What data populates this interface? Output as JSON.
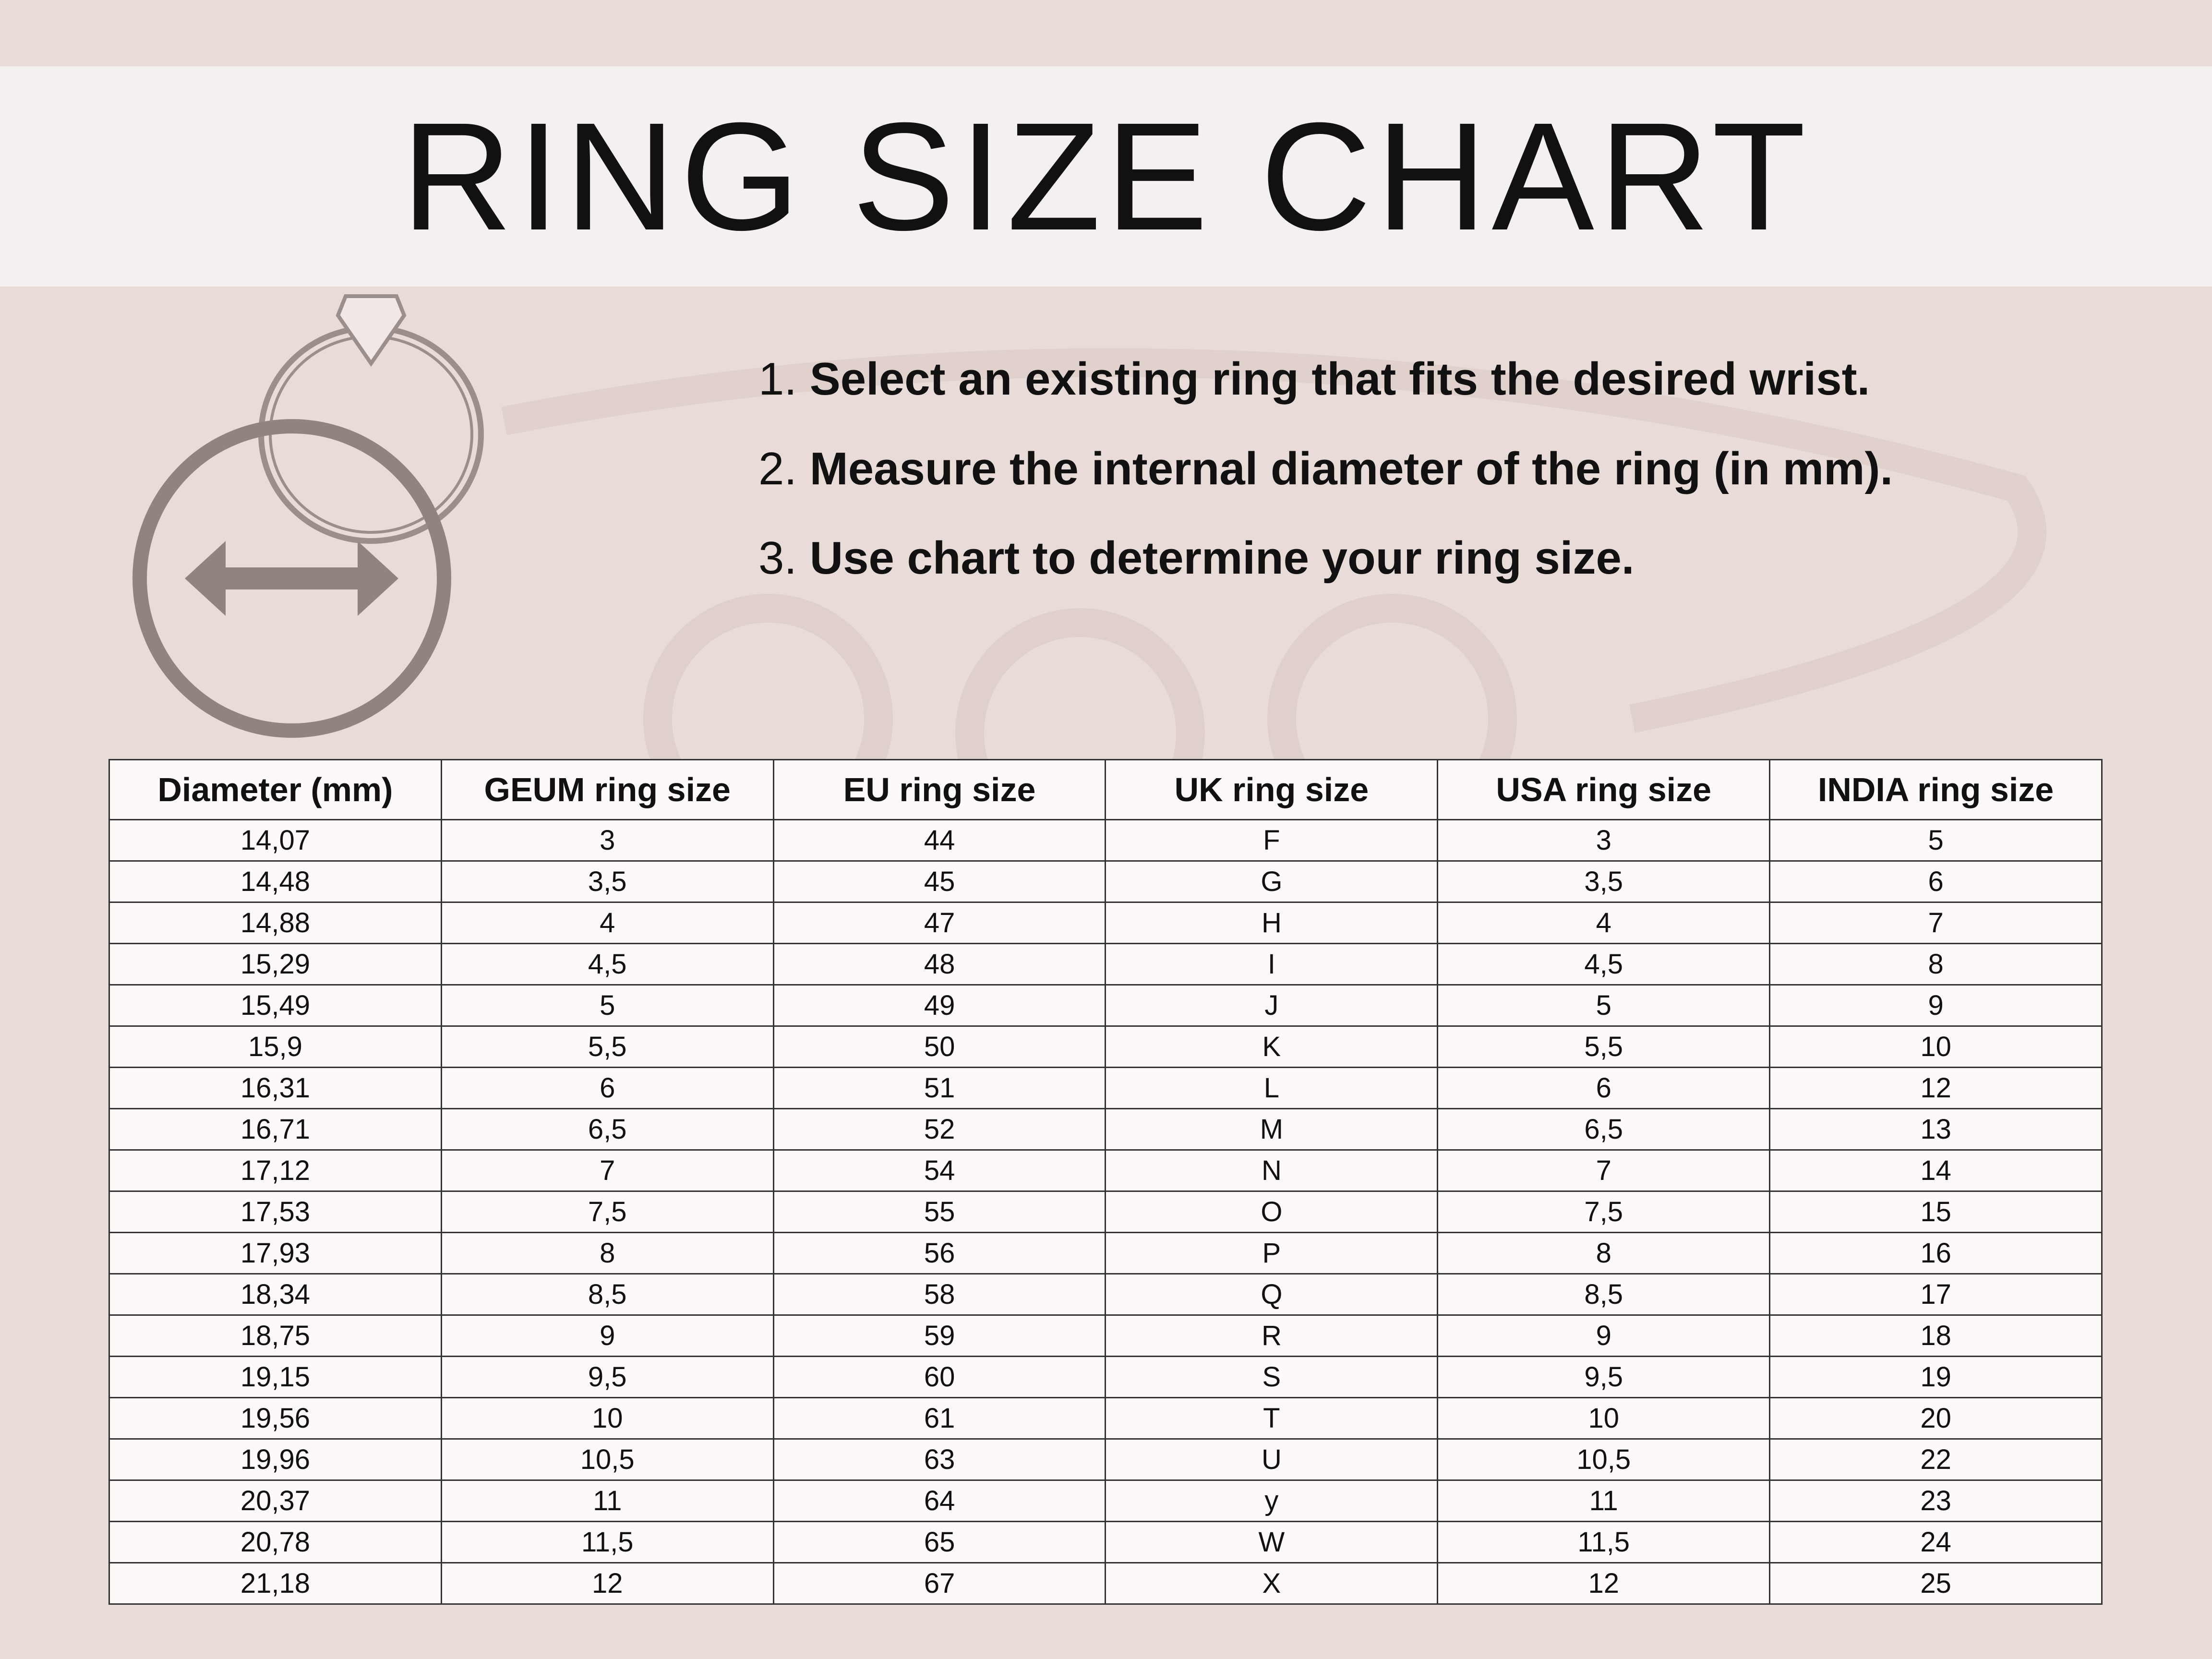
{
  "title": "RING SIZE CHART",
  "steps": [
    {
      "number": "1.",
      "text": "Select an existing ring that fits the desired wrist."
    },
    {
      "number": "2.",
      "text": "Measure the internal diameter of the ring (in mm)."
    },
    {
      "number": "3.",
      "text": "Use chart to determine your ring size."
    }
  ],
  "table": {
    "header": [
      "Diameter (mm)",
      "GEUM ring size",
      "EU ring size",
      "UK ring size",
      "USA ring size",
      "INDIA ring size"
    ],
    "rows": [
      [
        "14,07",
        "3",
        "44",
        "F",
        "3",
        "5"
      ],
      [
        "14,48",
        "3,5",
        "45",
        "G",
        "3,5",
        "6"
      ],
      [
        "14,88",
        "4",
        "47",
        "H",
        "4",
        "7"
      ],
      [
        "15,29",
        "4,5",
        "48",
        "I",
        "4,5",
        "8"
      ],
      [
        "15,49",
        "5",
        "49",
        "J",
        "5",
        "9"
      ],
      [
        "15,9",
        "5,5",
        "50",
        "K",
        "5,5",
        "10"
      ],
      [
        "16,31",
        "6",
        "51",
        "L",
        "6",
        "12"
      ],
      [
        "16,71",
        "6,5",
        "52",
        "M",
        "6,5",
        "13"
      ],
      [
        "17,12",
        "7",
        "54",
        "N",
        "7",
        "14"
      ],
      [
        "17,53",
        "7,5",
        "55",
        "O",
        "7,5",
        "15"
      ],
      [
        "17,93",
        "8",
        "56",
        "P",
        "8",
        "16"
      ],
      [
        "18,34",
        "8,5",
        "58",
        "Q",
        "8,5",
        "17"
      ],
      [
        "18,75",
        "9",
        "59",
        "R",
        "9",
        "18"
      ],
      [
        "19,15",
        "9,5",
        "60",
        "S",
        "9,5",
        "19"
      ],
      [
        "19,56",
        "10",
        "61",
        "T",
        "10",
        "20"
      ],
      [
        "19,96",
        "10,5",
        "63",
        "U",
        "10,5",
        "22"
      ],
      [
        "20,37",
        "11",
        "64",
        "y",
        "11",
        "23"
      ],
      [
        "20,78",
        "11,5",
        "65",
        "W",
        "11,5",
        "24"
      ],
      [
        "21,18",
        "12",
        "67",
        "X",
        "12",
        "25"
      ]
    ]
  }
}
